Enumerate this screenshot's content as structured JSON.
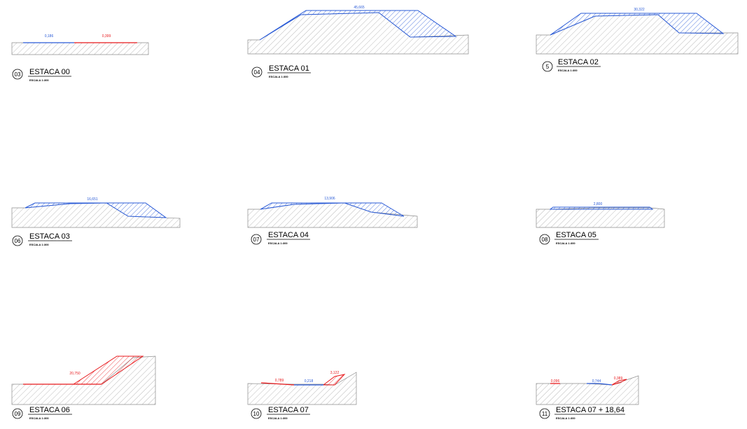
{
  "colors": {
    "fill": "#2a5bd7",
    "cut": "#e8191c",
    "ground": "#8c8c8c"
  },
  "sections": [
    {
      "num": "03",
      "title": "ESTACA 00",
      "scale": "ESCALA 1:300",
      "labels": [
        {
          "text": "0,186",
          "color": "fill"
        },
        {
          "text": "0,399",
          "color": "cut"
        }
      ]
    },
    {
      "num": "04",
      "title": "ESTACA 01",
      "scale": "ESCALA 1:300",
      "labels": [
        {
          "text": "45,665",
          "color": "fill"
        }
      ]
    },
    {
      "num": "5",
      "title": "ESTACA 02",
      "scale": "ESCALA 1:300",
      "labels": [
        {
          "text": "30,322",
          "color": "fill"
        }
      ]
    },
    {
      "num": "06",
      "title": "ESTACA 03",
      "scale": "ESCALA 1:300",
      "labels": [
        {
          "text": "16,651",
          "color": "fill"
        }
      ]
    },
    {
      "num": "07",
      "title": "ESTACA 04",
      "scale": "ESCALA 1:300",
      "labels": [
        {
          "text": "13,906",
          "color": "fill"
        }
      ]
    },
    {
      "num": "08",
      "title": "ESTACA 05",
      "scale": "ESCALA 1:300",
      "labels": [
        {
          "text": "2,800",
          "color": "fill"
        }
      ]
    },
    {
      "num": "09",
      "title": "ESTACA 06",
      "scale": "ESCALA 1:300",
      "labels": [
        {
          "text": "20,750",
          "color": "cut"
        }
      ]
    },
    {
      "num": "10",
      "title": "ESTACA 07",
      "scale": "ESCALA 1:300",
      "labels": [
        {
          "text": "0,789",
          "color": "cut"
        },
        {
          "text": "0,218",
          "color": "fill"
        },
        {
          "text": "3,122",
          "color": "cut"
        }
      ]
    },
    {
      "num": "11",
      "title": "ESTACA 07 + 18,64",
      "scale": "ESCALA 1:300",
      "labels": [
        {
          "text": "0,096",
          "color": "cut"
        },
        {
          "text": "0,744",
          "color": "fill"
        },
        {
          "text": "0,389",
          "color": "cut"
        }
      ]
    }
  ]
}
